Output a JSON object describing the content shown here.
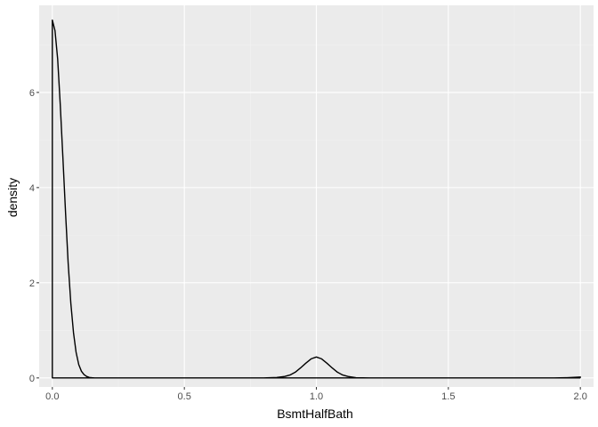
{
  "chart_data": {
    "type": "area",
    "xlabel": "BsmtHalfBath",
    "ylabel": "density",
    "xlim": [
      -0.05,
      2.05
    ],
    "ylim": [
      -0.19,
      7.83
    ],
    "x_ticks": [
      0.0,
      0.5,
      1.0,
      1.5,
      2.0
    ],
    "x_tick_labels": [
      "0.0",
      "0.5",
      "1.0",
      "1.5",
      "2.0"
    ],
    "y_ticks": [
      0,
      2,
      4,
      6
    ],
    "y_tick_labels": [
      "0",
      "2",
      "4",
      "6"
    ],
    "grid": true,
    "series": [
      {
        "x": [
          0.0,
          0.01,
          0.02,
          0.03,
          0.04,
          0.05,
          0.06,
          0.07,
          0.08,
          0.09,
          0.1,
          0.11,
          0.12,
          0.13,
          0.14,
          0.15,
          0.16,
          0.18,
          0.2,
          0.25,
          0.5,
          0.8,
          0.85,
          0.88,
          0.9,
          0.92,
          0.94,
          0.96,
          0.98,
          1.0,
          1.02,
          1.04,
          1.06,
          1.08,
          1.1,
          1.12,
          1.15,
          1.2,
          1.5,
          1.9,
          1.95,
          2.0
        ],
        "y": [
          7.52,
          7.3,
          6.7,
          5.75,
          4.62,
          3.46,
          2.41,
          1.57,
          0.95,
          0.54,
          0.28,
          0.14,
          0.07,
          0.03,
          0.01,
          0.004,
          0.001,
          0.0,
          0.0,
          0.0,
          0.0,
          0.0,
          0.01,
          0.03,
          0.06,
          0.12,
          0.21,
          0.31,
          0.4,
          0.44,
          0.4,
          0.31,
          0.21,
          0.12,
          0.06,
          0.03,
          0.005,
          0.0,
          0.0,
          0.0,
          0.005,
          0.02
        ]
      }
    ]
  }
}
